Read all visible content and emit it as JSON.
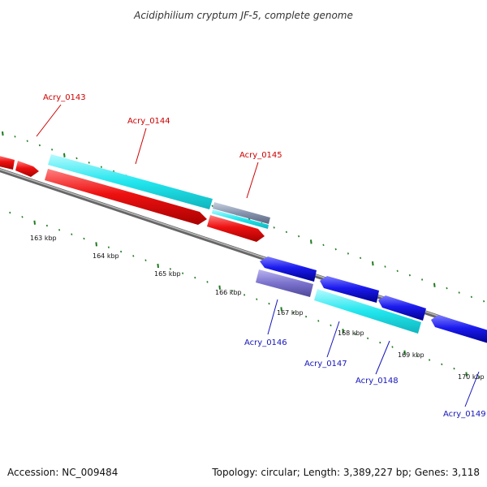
{
  "title": "Acidiphilium cryptum JF-5, complete genome",
  "footer": {
    "accession": "Accession: NC_009484",
    "summary": "Topology: circular; Length: 3,389,227 bp; Genes: 3,118"
  },
  "scale_labels": [
    "163 kbp",
    "164 kbp",
    "165 kbp",
    "166 kbp",
    "167 kbp",
    "168 kbp",
    "169 kbp",
    "170 kbp"
  ],
  "genes": [
    {
      "id": "Acry_0143",
      "strand": "forward"
    },
    {
      "id": "Acry_0144",
      "strand": "forward"
    },
    {
      "id": "Acry_0145",
      "strand": "forward"
    },
    {
      "id": "Acry_0146",
      "strand": "reverse"
    },
    {
      "id": "Acry_0147",
      "strand": "reverse"
    },
    {
      "id": "Acry_0148",
      "strand": "reverse"
    },
    {
      "id": "Acry_0149",
      "strand": "reverse"
    }
  ],
  "colors": {
    "forward": "#ee1111",
    "forward_label": "#cc0000",
    "reverse": "#1a1aee",
    "reverse_label": "#1414bb",
    "highlight": "#22e6ee",
    "backbone": "#777777",
    "ticks": "#1f7a1f",
    "muted_feature": "#7a72cc"
  }
}
